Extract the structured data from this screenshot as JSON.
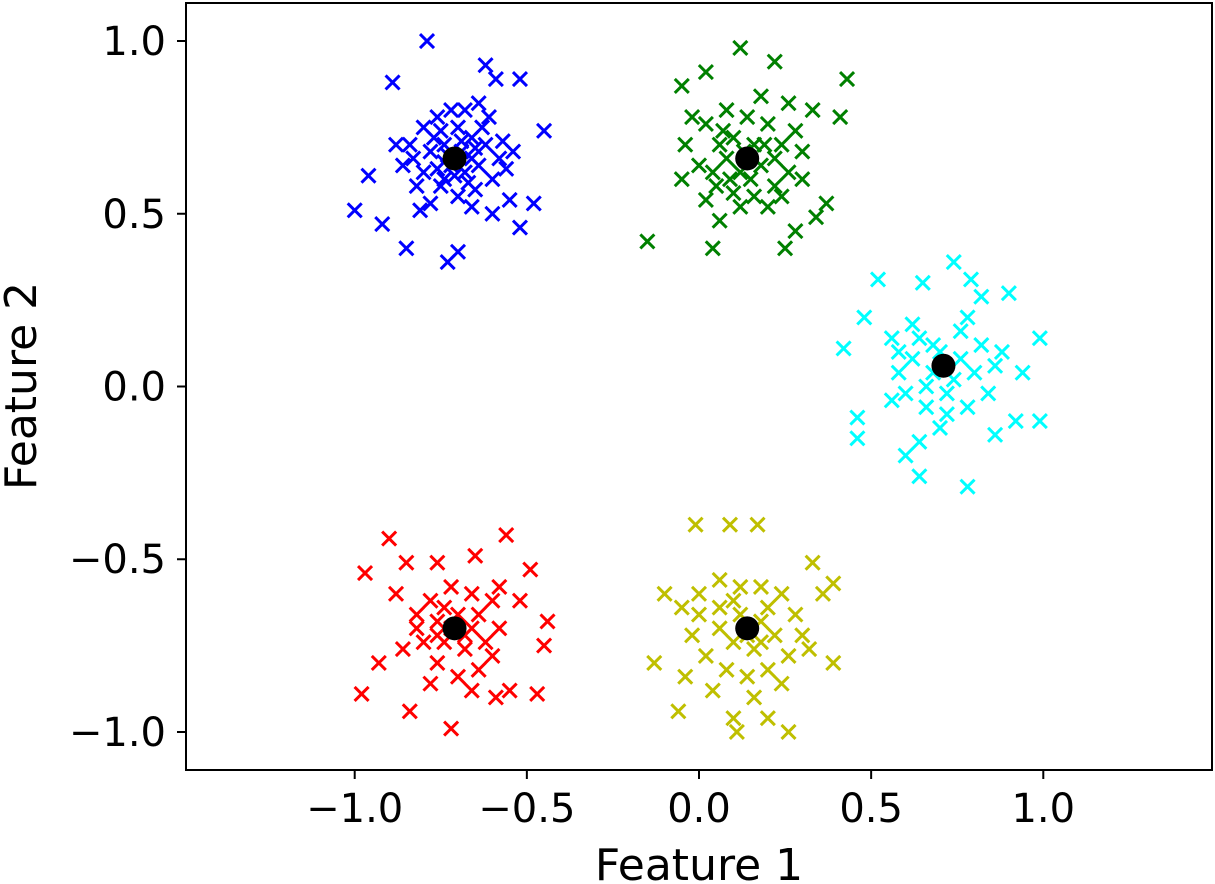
{
  "chart_data": {
    "type": "scatter",
    "xlabel": "Feature 1",
    "ylabel": "Feature 2",
    "xlim": [
      -1.49,
      1.49
    ],
    "ylim": [
      -1.11,
      1.11
    ],
    "xticks": [
      -1.0,
      -0.5,
      0.0,
      0.5,
      1.0
    ],
    "yticks": [
      -1.0,
      -0.5,
      0.0,
      0.5,
      1.0
    ],
    "xtick_labels": [
      "−1.0",
      "−0.5",
      "0.0",
      "0.5",
      "1.0"
    ],
    "ytick_labels": [
      "−1.0",
      "−0.5",
      "0.0",
      "0.5",
      "1.0"
    ],
    "grid": false,
    "legend": "none",
    "marker": "x",
    "center_marker": "filled-circle",
    "series": [
      {
        "color": "#0000ff",
        "center": [
          -0.71,
          0.66
        ],
        "points": [
          [
            -0.79,
            1.0
          ],
          [
            -0.62,
            0.93
          ],
          [
            -0.52,
            0.89
          ],
          [
            -0.89,
            0.88
          ],
          [
            -0.59,
            0.89
          ],
          [
            -0.88,
            0.7
          ],
          [
            -0.96,
            0.61
          ],
          [
            -1.0,
            0.51
          ],
          [
            -0.92,
            0.47
          ],
          [
            -0.85,
            0.4
          ],
          [
            -0.73,
            0.36
          ],
          [
            -0.7,
            0.39
          ],
          [
            -0.45,
            0.74
          ],
          [
            -0.48,
            0.53
          ],
          [
            -0.52,
            0.46
          ],
          [
            -0.55,
            0.54
          ],
          [
            -0.81,
            0.51
          ],
          [
            -0.6,
            0.5
          ],
          [
            -0.64,
            0.82
          ],
          [
            -0.68,
            0.8
          ],
          [
            -0.76,
            0.78
          ],
          [
            -0.8,
            0.75
          ],
          [
            -0.74,
            0.7
          ],
          [
            -0.66,
            0.72
          ],
          [
            -0.62,
            0.7
          ],
          [
            -0.58,
            0.66
          ],
          [
            -0.56,
            0.63
          ],
          [
            -0.6,
            0.6
          ],
          [
            -0.65,
            0.57
          ],
          [
            -0.7,
            0.55
          ],
          [
            -0.75,
            0.58
          ],
          [
            -0.8,
            0.62
          ],
          [
            -0.83,
            0.66
          ],
          [
            -0.78,
            0.68
          ],
          [
            -0.72,
            0.64
          ],
          [
            -0.68,
            0.62
          ],
          [
            -0.74,
            0.6
          ],
          [
            -0.66,
            0.66
          ],
          [
            -0.63,
            0.75
          ],
          [
            -0.7,
            0.75
          ],
          [
            -0.77,
            0.72
          ],
          [
            -0.69,
            0.68
          ],
          [
            -0.73,
            0.67
          ],
          [
            -0.64,
            0.64
          ],
          [
            -0.67,
            0.59
          ],
          [
            -0.71,
            0.61
          ],
          [
            -0.76,
            0.63
          ],
          [
            -0.82,
            0.58
          ],
          [
            -0.86,
            0.64
          ],
          [
            -0.61,
            0.78
          ],
          [
            -0.57,
            0.71
          ],
          [
            -0.54,
            0.68
          ],
          [
            -0.66,
            0.52
          ],
          [
            -0.78,
            0.53
          ],
          [
            -0.84,
            0.7
          ],
          [
            -0.72,
            0.8
          ],
          [
            -0.75,
            0.74
          ],
          [
            -0.65,
            0.69
          ],
          [
            -0.69,
            0.71
          ],
          [
            -0.74,
            0.65
          ]
        ]
      },
      {
        "color": "#008000",
        "center": [
          0.14,
          0.66
        ],
        "points": [
          [
            0.12,
            0.98
          ],
          [
            0.22,
            0.94
          ],
          [
            0.43,
            0.89
          ],
          [
            -0.05,
            0.87
          ],
          [
            0.02,
            0.91
          ],
          [
            0.41,
            0.78
          ],
          [
            -0.15,
            0.42
          ],
          [
            0.04,
            0.4
          ],
          [
            0.25,
            0.4
          ],
          [
            0.34,
            0.49
          ],
          [
            0.37,
            0.53
          ],
          [
            0.28,
            0.45
          ],
          [
            -0.05,
            0.6
          ],
          [
            0.02,
            0.54
          ],
          [
            0.06,
            0.48
          ],
          [
            0.2,
            0.52
          ],
          [
            0.3,
            0.68
          ],
          [
            0.33,
            0.8
          ],
          [
            0.26,
            0.82
          ],
          [
            0.18,
            0.84
          ],
          [
            0.08,
            0.8
          ],
          [
            0.02,
            0.76
          ],
          [
            -0.04,
            0.7
          ],
          [
            0.0,
            0.64
          ],
          [
            0.05,
            0.58
          ],
          [
            0.1,
            0.56
          ],
          [
            0.16,
            0.55
          ],
          [
            0.22,
            0.58
          ],
          [
            0.26,
            0.62
          ],
          [
            0.24,
            0.7
          ],
          [
            0.2,
            0.76
          ],
          [
            0.14,
            0.78
          ],
          [
            0.1,
            0.72
          ],
          [
            0.08,
            0.66
          ],
          [
            0.12,
            0.62
          ],
          [
            0.18,
            0.64
          ],
          [
            0.16,
            0.7
          ],
          [
            0.22,
            0.66
          ],
          [
            0.06,
            0.7
          ],
          [
            0.04,
            0.62
          ],
          [
            0.12,
            0.52
          ],
          [
            0.28,
            0.74
          ],
          [
            0.3,
            0.6
          ],
          [
            -0.02,
            0.78
          ],
          [
            0.09,
            0.6
          ],
          [
            0.15,
            0.6
          ],
          [
            0.19,
            0.7
          ],
          [
            0.13,
            0.68
          ],
          [
            0.07,
            0.74
          ],
          [
            0.24,
            0.55
          ]
        ]
      },
      {
        "color": "#00ffff",
        "center": [
          0.71,
          0.06
        ],
        "points": [
          [
            0.74,
            0.36
          ],
          [
            0.52,
            0.31
          ],
          [
            0.65,
            0.3
          ],
          [
            0.79,
            0.31
          ],
          [
            0.82,
            0.26
          ],
          [
            0.9,
            0.27
          ],
          [
            0.99,
            0.14
          ],
          [
            0.94,
            0.04
          ],
          [
            0.92,
            -0.1
          ],
          [
            0.99,
            -0.1
          ],
          [
            0.86,
            -0.14
          ],
          [
            0.78,
            -0.29
          ],
          [
            0.64,
            -0.26
          ],
          [
            0.6,
            -0.2
          ],
          [
            0.46,
            -0.15
          ],
          [
            0.46,
            -0.09
          ],
          [
            0.42,
            0.11
          ],
          [
            0.48,
            0.2
          ],
          [
            0.56,
            0.14
          ],
          [
            0.62,
            0.18
          ],
          [
            0.68,
            0.12
          ],
          [
            0.76,
            0.16
          ],
          [
            0.82,
            0.12
          ],
          [
            0.86,
            0.06
          ],
          [
            0.84,
            -0.02
          ],
          [
            0.78,
            -0.06
          ],
          [
            0.72,
            -0.08
          ],
          [
            0.66,
            -0.06
          ],
          [
            0.6,
            -0.02
          ],
          [
            0.58,
            0.04
          ],
          [
            0.62,
            0.08
          ],
          [
            0.68,
            0.04
          ],
          [
            0.74,
            0.02
          ],
          [
            0.76,
            0.08
          ],
          [
            0.7,
            0.1
          ],
          [
            0.66,
            0.0
          ],
          [
            0.72,
            -0.02
          ],
          [
            0.8,
            0.04
          ],
          [
            0.64,
            0.14
          ],
          [
            0.56,
            -0.04
          ],
          [
            0.88,
            0.1
          ],
          [
            0.7,
            -0.12
          ],
          [
            0.64,
            -0.16
          ],
          [
            0.58,
            0.1
          ],
          [
            0.78,
            0.2
          ]
        ]
      },
      {
        "color": "#ff0000",
        "center": [
          -0.71,
          -0.7
        ],
        "points": [
          [
            -0.9,
            -0.44
          ],
          [
            -0.56,
            -0.43
          ],
          [
            -0.97,
            -0.54
          ],
          [
            -0.85,
            -0.51
          ],
          [
            -0.76,
            -0.51
          ],
          [
            -0.65,
            -0.49
          ],
          [
            -0.49,
            -0.53
          ],
          [
            -0.52,
            -0.62
          ],
          [
            -0.44,
            -0.68
          ],
          [
            -0.45,
            -0.75
          ],
          [
            -0.47,
            -0.89
          ],
          [
            -0.98,
            -0.89
          ],
          [
            -0.93,
            -0.8
          ],
          [
            -0.84,
            -0.94
          ],
          [
            -0.72,
            -0.99
          ],
          [
            -0.59,
            -0.9
          ],
          [
            -0.55,
            -0.88
          ],
          [
            -0.88,
            -0.6
          ],
          [
            -0.82,
            -0.66
          ],
          [
            -0.78,
            -0.62
          ],
          [
            -0.72,
            -0.58
          ],
          [
            -0.66,
            -0.6
          ],
          [
            -0.6,
            -0.62
          ],
          [
            -0.58,
            -0.7
          ],
          [
            -0.6,
            -0.78
          ],
          [
            -0.64,
            -0.82
          ],
          [
            -0.7,
            -0.84
          ],
          [
            -0.76,
            -0.8
          ],
          [
            -0.8,
            -0.74
          ],
          [
            -0.82,
            -0.7
          ],
          [
            -0.76,
            -0.68
          ],
          [
            -0.7,
            -0.66
          ],
          [
            -0.66,
            -0.7
          ],
          [
            -0.68,
            -0.76
          ],
          [
            -0.74,
            -0.74
          ],
          [
            -0.72,
            -0.7
          ],
          [
            -0.64,
            -0.66
          ],
          [
            -0.62,
            -0.74
          ],
          [
            -0.78,
            -0.86
          ],
          [
            -0.66,
            -0.88
          ],
          [
            -0.86,
            -0.76
          ],
          [
            -0.58,
            -0.58
          ],
          [
            -0.74,
            -0.64
          ],
          [
            -0.68,
            -0.72
          ],
          [
            -0.76,
            -0.72
          ]
        ]
      },
      {
        "color": "#bfbf00",
        "center": [
          0.14,
          -0.7
        ],
        "points": [
          [
            -0.01,
            -0.4
          ],
          [
            0.09,
            -0.4
          ],
          [
            0.17,
            -0.4
          ],
          [
            0.33,
            -0.51
          ],
          [
            0.39,
            -0.57
          ],
          [
            0.36,
            -0.6
          ],
          [
            0.39,
            -0.8
          ],
          [
            -0.13,
            -0.8
          ],
          [
            -0.06,
            -0.94
          ],
          [
            0.1,
            -0.96
          ],
          [
            0.11,
            -1.0
          ],
          [
            0.2,
            -0.96
          ],
          [
            0.26,
            -1.0
          ],
          [
            -0.1,
            -0.6
          ],
          [
            -0.05,
            -0.64
          ],
          [
            0.0,
            -0.6
          ],
          [
            0.06,
            -0.56
          ],
          [
            0.12,
            -0.58
          ],
          [
            0.18,
            -0.58
          ],
          [
            0.24,
            -0.6
          ],
          [
            0.28,
            -0.66
          ],
          [
            0.3,
            -0.72
          ],
          [
            0.26,
            -0.78
          ],
          [
            0.2,
            -0.82
          ],
          [
            0.14,
            -0.84
          ],
          [
            0.08,
            -0.82
          ],
          [
            0.02,
            -0.78
          ],
          [
            -0.02,
            -0.72
          ],
          [
            0.0,
            -0.66
          ],
          [
            0.06,
            -0.64
          ],
          [
            0.12,
            -0.66
          ],
          [
            0.18,
            -0.68
          ],
          [
            0.22,
            -0.72
          ],
          [
            0.16,
            -0.76
          ],
          [
            0.1,
            -0.74
          ],
          [
            0.06,
            -0.7
          ],
          [
            0.14,
            -0.72
          ],
          [
            0.2,
            -0.64
          ],
          [
            0.04,
            -0.88
          ],
          [
            0.16,
            -0.9
          ],
          [
            0.32,
            -0.76
          ],
          [
            -0.04,
            -0.84
          ],
          [
            0.24,
            -0.86
          ],
          [
            0.1,
            -0.62
          ],
          [
            0.18,
            -0.74
          ]
        ]
      }
    ]
  }
}
